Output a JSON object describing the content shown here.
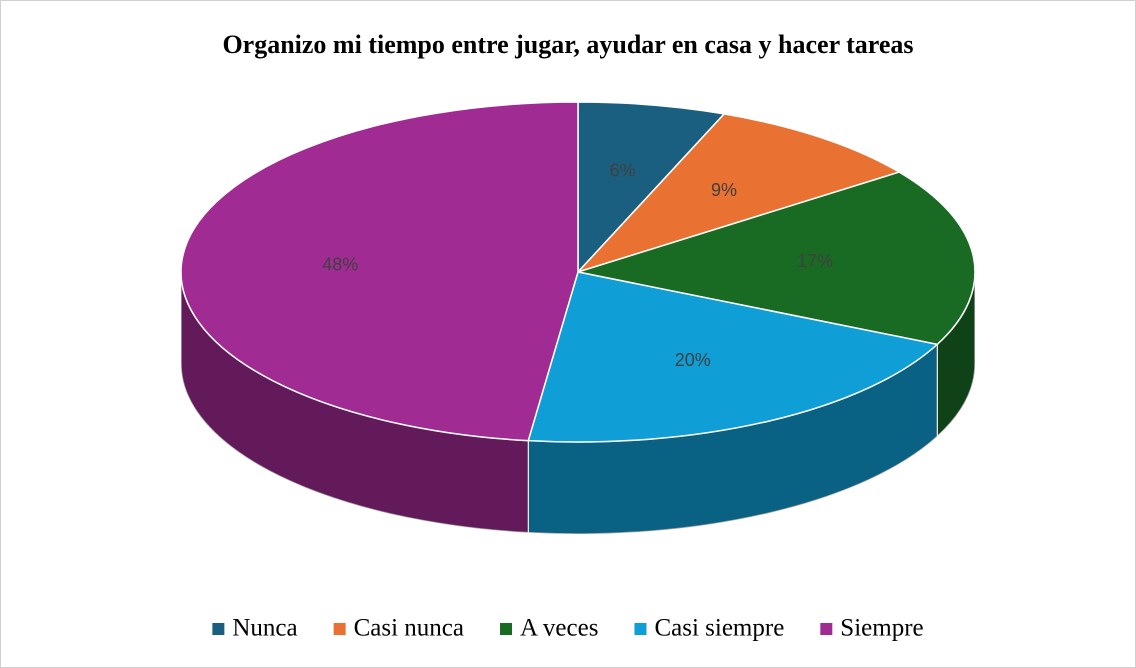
{
  "chart_data": {
    "type": "pie3d",
    "title": "Organizo mi tiempo entre jugar, ayudar en casa y hacer tareas",
    "categories": [
      "Nunca",
      "Casi nunca",
      "A veces",
      "Casi siempre",
      "Siempre"
    ],
    "values": [
      6,
      9,
      17,
      20,
      48
    ],
    "value_labels": [
      "6%",
      "9%",
      "17%",
      "20%",
      "48%"
    ],
    "colors": [
      "#1a5f80",
      "#e97132",
      "#196b24",
      "#0f9ed5",
      "#a02b93"
    ],
    "legend": "bottom"
  }
}
